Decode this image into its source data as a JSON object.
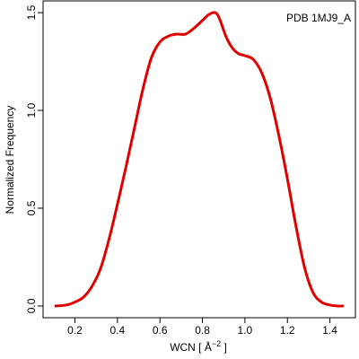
{
  "chart_data": {
    "type": "line",
    "title": "",
    "annotation": "PDB 1MJ9_A",
    "xlabel": {
      "prefix": "WCN [ Å",
      "superscript": "−2",
      "suffix": " ]"
    },
    "ylabel": "Normalized Frequency",
    "xlim": [
      0.05,
      1.52
    ],
    "ylim": [
      -0.06,
      1.56
    ],
    "xticks": [
      0.2,
      0.4,
      0.6,
      0.8,
      1.0,
      1.2,
      1.4
    ],
    "xtick_labels": [
      "0.2",
      "0.4",
      "0.6",
      "0.8",
      "1.0",
      "1.2",
      "1.4"
    ],
    "yticks": [
      0.0,
      0.5,
      1.0,
      1.5
    ],
    "ytick_labels": [
      "0.0",
      "0.5",
      "1.0",
      "1.5"
    ],
    "grid": false,
    "legend": "none",
    "series": [
      {
        "color": "#e00000",
        "x": [
          0.11,
          0.16,
          0.2,
          0.24,
          0.28,
          0.32,
          0.36,
          0.4,
          0.44,
          0.48,
          0.52,
          0.56,
          0.6,
          0.64,
          0.68,
          0.72,
          0.76,
          0.8,
          0.83,
          0.86,
          0.88,
          0.91,
          0.94,
          0.97,
          1.0,
          1.04,
          1.08,
          1.12,
          1.16,
          1.2,
          1.24,
          1.28,
          1.32,
          1.36,
          1.4,
          1.43,
          1.46
        ],
        "y": [
          0.0,
          0.005,
          0.02,
          0.045,
          0.1,
          0.19,
          0.34,
          0.52,
          0.71,
          0.91,
          1.11,
          1.27,
          1.35,
          1.38,
          1.39,
          1.39,
          1.42,
          1.46,
          1.49,
          1.5,
          1.47,
          1.38,
          1.32,
          1.29,
          1.28,
          1.26,
          1.19,
          1.06,
          0.87,
          0.65,
          0.41,
          0.2,
          0.07,
          0.02,
          0.005,
          0.0,
          0.0
        ]
      }
    ]
  }
}
